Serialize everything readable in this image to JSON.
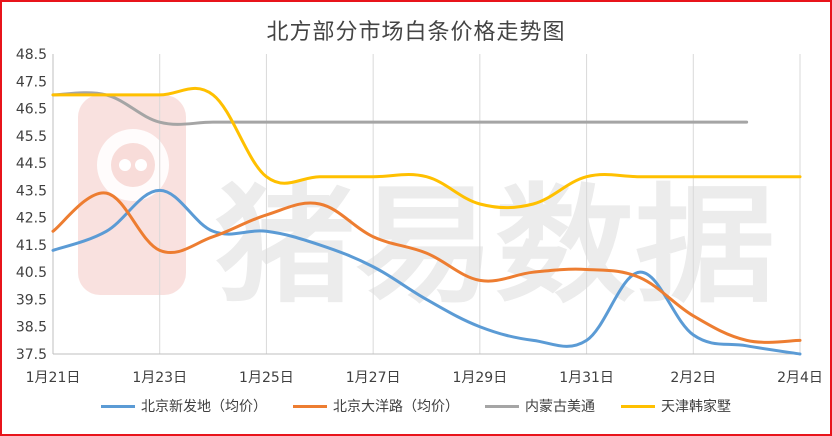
{
  "chart_data": {
    "type": "line",
    "title": "北方部分市场白条价格走势图",
    "xlabel": "",
    "ylabel": "",
    "x": [
      "1月21日",
      "1月22日",
      "1月23日",
      "1月24日",
      "1月25日",
      "1月26日",
      "1月27日",
      "1月28日",
      "1月29日",
      "1月30日",
      "1月31日",
      "2月1日",
      "2月2日",
      "2月3日",
      "2月4日"
    ],
    "x_tick_labels": [
      "1月21日",
      "1月23日",
      "1月25日",
      "1月27日",
      "1月29日",
      "1月31日",
      "2月2日",
      "2月4日"
    ],
    "ylim": [
      37.5,
      48.5
    ],
    "y_ticks": [
      "37.5",
      "38.5",
      "39.5",
      "40.5",
      "41.5",
      "42.5",
      "43.5",
      "44.5",
      "45.5",
      "46.5",
      "47.5",
      "48.5"
    ],
    "grid": "vertical",
    "legend_position": "bottom",
    "series": [
      {
        "name": "北京新发地（均价）",
        "color": "#5b9bd5",
        "values": [
          41.3,
          42.0,
          43.5,
          42.0,
          42.0,
          41.5,
          40.7,
          39.5,
          38.5,
          38.0,
          38.0,
          40.5,
          38.2,
          37.8,
          37.5
        ]
      },
      {
        "name": "北京大洋路（均价）",
        "color": "#ed7d31",
        "values": [
          42.0,
          43.4,
          41.3,
          41.8,
          42.6,
          43.0,
          41.8,
          41.2,
          40.2,
          40.5,
          40.6,
          40.3,
          38.9,
          38.0,
          38.0
        ]
      },
      {
        "name": "内蒙古美通",
        "color": "#a5a5a5",
        "values": [
          47.0,
          47.0,
          46.0,
          46.0,
          46.0,
          46.0,
          46.0,
          46.0,
          46.0,
          46.0,
          46.0,
          46.0,
          46.0,
          46.0,
          null
        ]
      },
      {
        "name": "天津韩家墅",
        "color": "#ffc000",
        "values": [
          47.0,
          47.0,
          47.0,
          47.0,
          44.0,
          44.0,
          44.0,
          44.0,
          43.0,
          43.0,
          44.0,
          44.0,
          44.0,
          44.0,
          44.0
        ]
      }
    ]
  },
  "watermark": {
    "text": "猪易数据",
    "logo": "pig-logo-icon"
  }
}
